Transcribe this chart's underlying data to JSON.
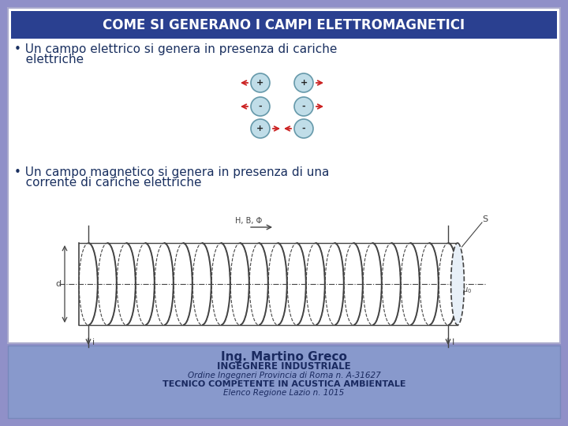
{
  "title": "COME SI GENERANO I CAMPI ELETTROMAGNETICI",
  "bullet1_line1": "• Un campo elettrico si genera in presenza di cariche",
  "bullet1_line2": "   elettriche",
  "bullet2_line1": "• Un campo magnetico si genera in presenza di una",
  "bullet2_line2": "   corrente di cariche elettriche",
  "footer_name": "Ing. Martino Greco",
  "footer_role": "INGEGNERE INDUSTRIALE",
  "footer_order": "Ordine Ingegneri Provincia di Roma n. A-31627",
  "footer_tech": "TECNICO COMPETENTE IN ACUSTICA AMBIENTALE",
  "footer_elenco": "Elenco Regione Lazio n. 1015",
  "bg_main": "#9090c8",
  "bg_content": "#ffffff",
  "bg_footer": "#8899cc",
  "title_bg": "#2a4090",
  "title_color": "#ffffff",
  "text_color": "#1a3060",
  "footer_text_color": "#1a2a60",
  "charge_color": "#c0dde8",
  "charge_border": "#6699aa",
  "arrow_color": "#cc2222",
  "sol_color": "#444444",
  "coil_fill": "#ddeeff"
}
